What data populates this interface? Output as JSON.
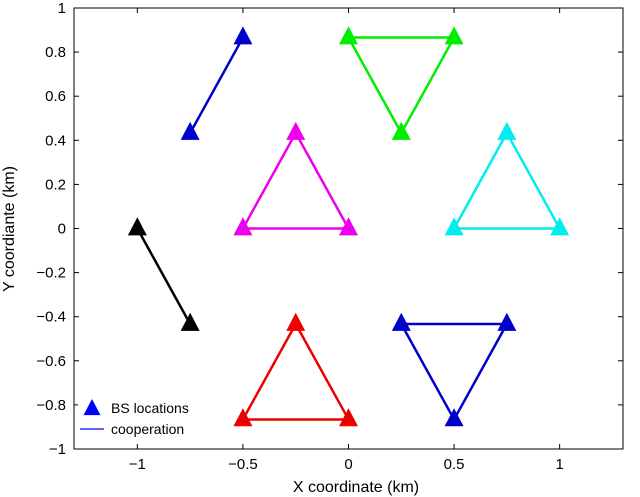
{
  "chart_data": {
    "type": "scatter",
    "title": "",
    "xlabel": "X coordinate (km)",
    "ylabel": "Y coordiante (km)",
    "xlim": [
      -1.3,
      1.3
    ],
    "ylim": [
      -1,
      1
    ],
    "xticks": [
      -1,
      -0.5,
      0,
      0.5,
      1
    ],
    "xtick_labels": [
      "−1",
      "−0.5",
      "0",
      "0.5",
      "1"
    ],
    "yticks": [
      -1,
      -0.8,
      -0.6,
      -0.4,
      -0.2,
      0,
      0.2,
      0.4,
      0.6,
      0.8,
      1
    ],
    "ytick_labels": [
      "−1",
      "−0.8",
      "−0.6",
      "−0.4",
      "−0.2",
      "0",
      "0.2",
      "0.4",
      "0.6",
      "0.8",
      "1"
    ],
    "grid": false,
    "legend_position": "bottom-left",
    "legend": [
      {
        "label": "BS locations",
        "marker": "triangle",
        "color": "#0000ff"
      },
      {
        "label": "cooperation",
        "marker": "line",
        "color": "#0000ff"
      }
    ],
    "clusters": [
      {
        "color": "#0000cc",
        "points": [
          [
            -0.75,
            0.433
          ],
          [
            -0.5,
            0.866
          ]
        ],
        "closed": false
      },
      {
        "color": "#00ee00",
        "points": [
          [
            0,
            0.866
          ],
          [
            0.5,
            0.866
          ],
          [
            0.25,
            0.433
          ]
        ],
        "closed": true
      },
      {
        "color": "#ee00ee",
        "points": [
          [
            -0.25,
            0.433
          ],
          [
            -0.5,
            0
          ],
          [
            0,
            0
          ]
        ],
        "closed": true
      },
      {
        "color": "#00eeee",
        "points": [
          [
            0.75,
            0.433
          ],
          [
            0.5,
            0
          ],
          [
            1,
            0
          ]
        ],
        "closed": true
      },
      {
        "color": "#000000",
        "points": [
          [
            -1,
            0
          ],
          [
            -0.75,
            -0.433
          ]
        ],
        "closed": false
      },
      {
        "color": "#ee0000",
        "points": [
          [
            -0.25,
            -0.433
          ],
          [
            -0.5,
            -0.866
          ],
          [
            0,
            -0.866
          ]
        ],
        "closed": true
      },
      {
        "color": "#0000cc",
        "points": [
          [
            0.25,
            -0.433
          ],
          [
            0.75,
            -0.433
          ],
          [
            0.5,
            -0.866
          ]
        ],
        "closed": true
      }
    ]
  }
}
